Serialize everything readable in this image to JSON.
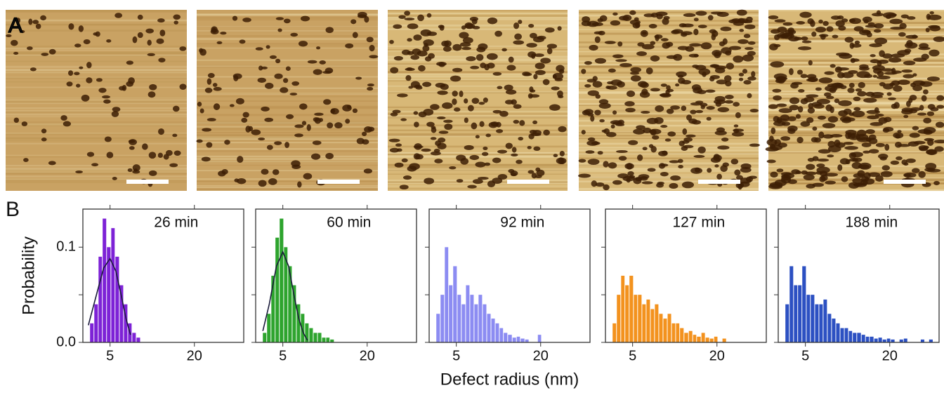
{
  "panel_labels": [
    "A",
    "B"
  ],
  "chart_data": [
    {
      "type": "histogram",
      "title": "26 min",
      "ylabel": "Probability",
      "color": "#7d22d6",
      "xscale": "log",
      "xlim": [
        3.2,
        45
      ],
      "xticks": [
        5,
        20
      ],
      "ylim": [
        0,
        0.14
      ],
      "yticks": [
        {
          "value": 0,
          "label": "0.0"
        },
        {
          "value": 0.05,
          "label": null
        },
        0.1
      ],
      "bins": [
        3.6,
        3.86,
        4.14,
        4.43,
        4.75,
        5.1,
        5.46,
        5.86,
        6.28,
        6.73,
        7.21,
        7.73,
        8.29
      ],
      "values": [
        0.02,
        0.04,
        0.09,
        0.13,
        0.1,
        0.12,
        0.09,
        0.06,
        0.04,
        0.02,
        0.01,
        0.005
      ],
      "fit": {
        "color": "#1a1a3a",
        "x": [
          3.5,
          4,
          4.5,
          5,
          5.5,
          6,
          6.5,
          7
        ],
        "values": [
          0.018,
          0.05,
          0.078,
          0.088,
          0.075,
          0.05,
          0.025,
          0.008
        ]
      }
    },
    {
      "type": "histogram",
      "title": "60 min",
      "color": "#2ea42e",
      "xscale": "log",
      "xlim": [
        3.2,
        45
      ],
      "xticks": [
        5,
        20
      ],
      "ylim": [
        0,
        0.14
      ],
      "yticks": [
        {
          "value": 0,
          "label": null
        },
        {
          "value": 0.05,
          "label": null
        },
        {
          "value": 0.1,
          "label": null
        }
      ],
      "bins": [
        3.6,
        3.86,
        4.14,
        4.43,
        4.75,
        5.1,
        5.46,
        5.86,
        6.28,
        6.73,
        7.21,
        7.73,
        8.29,
        8.89,
        9.53,
        10.2,
        10.9,
        11.7
      ],
      "values": [
        0.01,
        0.03,
        0.07,
        0.11,
        0.13,
        0.1,
        0.08,
        0.06,
        0.04,
        0.03,
        0.02,
        0.015,
        0.01,
        0.01,
        0.005,
        0.005,
        0.003
      ],
      "fit": {
        "color": "#1a1a3a",
        "x": [
          3.6,
          4,
          4.5,
          5,
          5.5,
          6,
          6.5,
          7,
          7.5
        ],
        "values": [
          0.012,
          0.04,
          0.08,
          0.095,
          0.08,
          0.05,
          0.025,
          0.01,
          0.002
        ]
      }
    },
    {
      "type": "histogram",
      "title": "92 min",
      "xlabel": "Defect radius (nm)",
      "color": "#8c8cf2",
      "xscale": "log",
      "xlim": [
        3.2,
        45
      ],
      "xticks": [
        5,
        20
      ],
      "ylim": [
        0,
        0.14
      ],
      "yticks": [
        {
          "value": 0,
          "label": null
        },
        {
          "value": 0.05,
          "label": null
        },
        {
          "value": 0.1,
          "label": null
        }
      ],
      "bins": [
        3.6,
        3.86,
        4.14,
        4.43,
        4.75,
        5.1,
        5.46,
        5.86,
        6.28,
        6.73,
        7.21,
        7.73,
        8.29,
        8.89,
        9.53,
        10.2,
        10.9,
        11.7,
        12.6,
        13.5,
        14.4,
        15.5,
        16.6,
        17.8,
        19.1,
        20.4
      ],
      "values": [
        0.03,
        0.05,
        0.1,
        0.06,
        0.08,
        0.05,
        0.04,
        0.06,
        0.05,
        0.04,
        0.05,
        0.04,
        0.03,
        0.025,
        0.02,
        0.015,
        0.01,
        0.008,
        0.005,
        0.006,
        0.004,
        0.003,
        0,
        0,
        0.008
      ]
    },
    {
      "type": "histogram",
      "title": "127 min",
      "color": "#f3921e",
      "xscale": "log",
      "xlim": [
        3.2,
        45
      ],
      "xticks": [
        5,
        20
      ],
      "ylim": [
        0,
        0.14
      ],
      "yticks": [
        {
          "value": 0,
          "label": null
        },
        {
          "value": 0.05,
          "label": null
        },
        {
          "value": 0.1,
          "label": null
        }
      ],
      "bins": [
        3.6,
        3.86,
        4.14,
        4.43,
        4.75,
        5.1,
        5.46,
        5.86,
        6.28,
        6.73,
        7.21,
        7.73,
        8.29,
        8.89,
        9.53,
        10.2,
        10.9,
        11.7,
        12.6,
        13.5,
        14.4,
        15.5,
        16.6,
        17.8,
        19.1,
        20.4,
        21.9,
        23.5
      ],
      "values": [
        0.02,
        0.05,
        0.07,
        0.06,
        0.07,
        0.05,
        0.05,
        0.04,
        0.045,
        0.035,
        0.04,
        0.03,
        0.025,
        0.03,
        0.02,
        0.02,
        0.015,
        0.01,
        0.012,
        0.008,
        0.006,
        0.01,
        0.005,
        0.004,
        0.006,
        0,
        0.004
      ]
    },
    {
      "type": "histogram",
      "title": "188 min",
      "color": "#2c50c2",
      "xscale": "log",
      "xlim": [
        3.2,
        45
      ],
      "xticks": [
        5,
        20
      ],
      "ylim": [
        0,
        0.14
      ],
      "yticks": [
        {
          "value": 0,
          "label": null
        },
        {
          "value": 0.05,
          "label": null
        },
        {
          "value": 0.1,
          "label": null
        }
      ],
      "bins": [
        3.6,
        3.86,
        4.14,
        4.43,
        4.75,
        5.1,
        5.46,
        5.86,
        6.28,
        6.73,
        7.21,
        7.73,
        8.29,
        8.89,
        9.53,
        10.2,
        10.9,
        11.7,
        12.6,
        13.5,
        14.4,
        15.5,
        16.6,
        17.8,
        19.1,
        20.4,
        21.9,
        23.5,
        25.2,
        27.0,
        28.9,
        31.0,
        33.3,
        35.7,
        38.2,
        41.0
      ],
      "values": [
        0.04,
        0.08,
        0.06,
        0.06,
        0.08,
        0.05,
        0.05,
        0.04,
        0.04,
        0.045,
        0.03,
        0.025,
        0.02,
        0.015,
        0.015,
        0.012,
        0.01,
        0.01,
        0.008,
        0.006,
        0.006,
        0.004,
        0.005,
        0.003,
        0.004,
        0.003,
        0,
        0.003,
        0.004,
        0,
        0,
        0,
        0.003,
        0,
        0.003
      ]
    }
  ]
}
